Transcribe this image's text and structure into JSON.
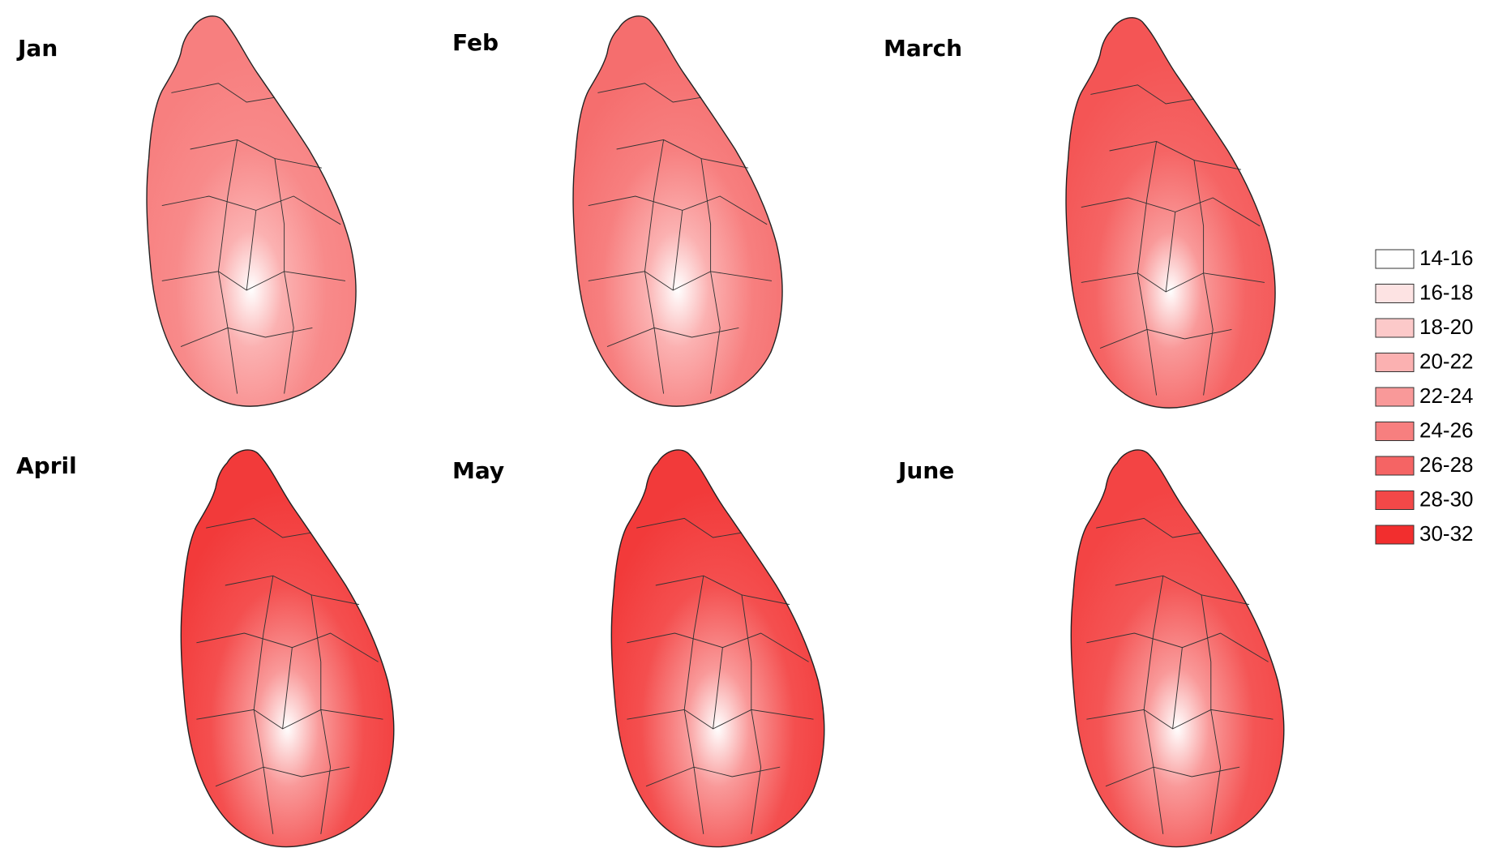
{
  "panels": [
    {
      "label": "Jan"
    },
    {
      "label": "Feb"
    },
    {
      "label": "March"
    },
    {
      "label": "April"
    },
    {
      "label": "May"
    },
    {
      "label": "June"
    }
  ],
  "legend": {
    "items": [
      {
        "label": "14-16",
        "color": "#ffffff"
      },
      {
        "label": "16-18",
        "color": "#fde3e3"
      },
      {
        "label": "18-20",
        "color": "#fcc9c9"
      },
      {
        "label": "20-22",
        "color": "#fbb1b1"
      },
      {
        "label": "22-24",
        "color": "#f99999"
      },
      {
        "label": "24-26",
        "color": "#f77f7f"
      },
      {
        "label": "26-28",
        "color": "#f56464"
      },
      {
        "label": "28-30",
        "color": "#f34848"
      },
      {
        "label": "30-32",
        "color": "#f22e2e"
      }
    ]
  }
}
